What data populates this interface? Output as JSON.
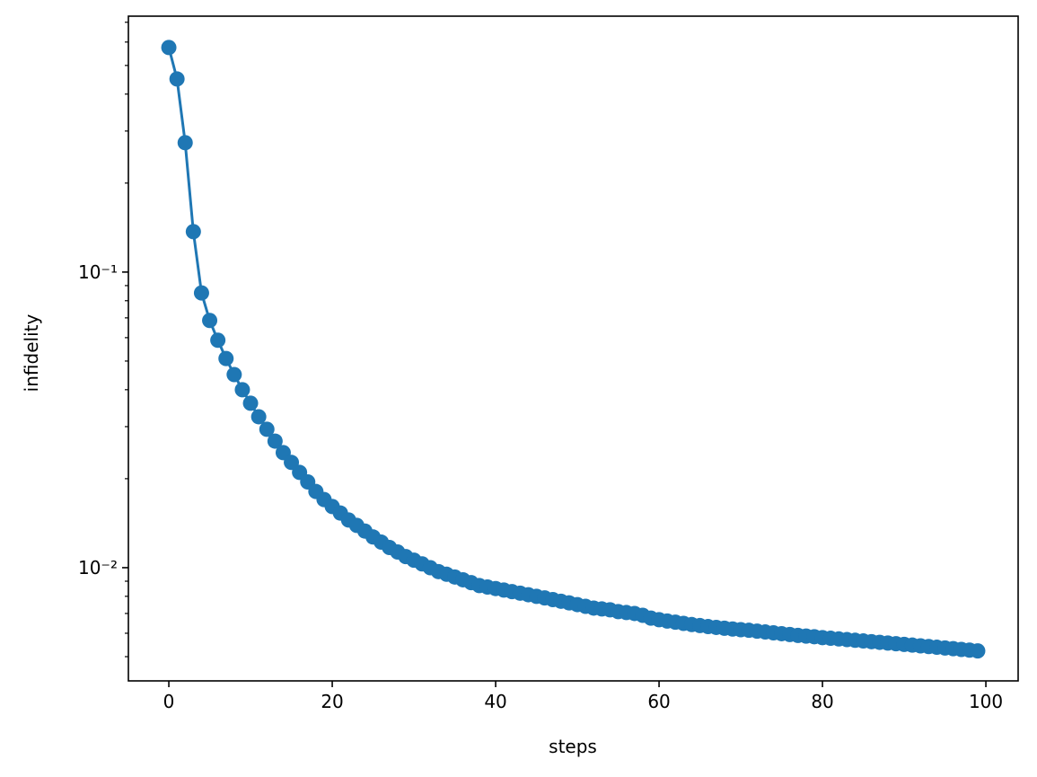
{
  "chart_data": {
    "type": "line",
    "xlabel": "steps",
    "ylabel": "infidelity",
    "yscale": "log",
    "markers": true,
    "color": "#1f77b4",
    "x": [
      0,
      1,
      2,
      3,
      4,
      5,
      6,
      7,
      8,
      9,
      10,
      11,
      12,
      13,
      14,
      15,
      16,
      17,
      18,
      19,
      20,
      21,
      22,
      23,
      24,
      25,
      26,
      27,
      28,
      29,
      30,
      31,
      32,
      33,
      34,
      35,
      36,
      37,
      38,
      39,
      40,
      41,
      42,
      43,
      44,
      45,
      46,
      47,
      48,
      49,
      50,
      51,
      52,
      53,
      54,
      55,
      56,
      57,
      58,
      59,
      60,
      61,
      62,
      63,
      64,
      65,
      66,
      67,
      68,
      69,
      70,
      71,
      72,
      73,
      74,
      75,
      76,
      77,
      78,
      79,
      80,
      81,
      82,
      83,
      84,
      85,
      86,
      87,
      88,
      89,
      90,
      91,
      92,
      93,
      94,
      95,
      96,
      97,
      98,
      99
    ],
    "values": [
      0.575,
      0.45,
      0.274,
      0.137,
      0.085,
      0.0686,
      0.0588,
      0.051,
      0.045,
      0.04,
      0.036,
      0.0324,
      0.0294,
      0.0268,
      0.0245,
      0.0227,
      0.021,
      0.0195,
      0.0181,
      0.017,
      0.0161,
      0.0153,
      0.0145,
      0.0139,
      0.0133,
      0.0127,
      0.0122,
      0.0117,
      0.0113,
      0.0109,
      0.0106,
      0.0103,
      0.01,
      0.0097,
      0.0095,
      0.0093,
      0.0091,
      0.0089,
      0.0087,
      0.0086,
      0.0085,
      0.0084,
      0.0083,
      0.0082,
      0.0081,
      0.008,
      0.0079,
      0.0078,
      0.0077,
      0.0076,
      0.0075,
      0.0074,
      0.0073,
      0.00725,
      0.0072,
      0.0071,
      0.00705,
      0.007,
      0.0069,
      0.00675,
      0.00667,
      0.0066,
      0.00654,
      0.00648,
      0.00642,
      0.00637,
      0.00632,
      0.00628,
      0.00624,
      0.0062,
      0.00617,
      0.00614,
      0.0061,
      0.00606,
      0.00602,
      0.00598,
      0.00594,
      0.0059,
      0.00587,
      0.00584,
      0.0058,
      0.00577,
      0.00574,
      0.00571,
      0.00568,
      0.00565,
      0.00562,
      0.00559,
      0.00556,
      0.00553,
      0.0055,
      0.00547,
      0.00544,
      0.00541,
      0.00538,
      0.00535,
      0.00532,
      0.00529,
      0.00526,
      0.00523
    ],
    "xlim": [
      -4.95,
      103.95
    ],
    "xticks": [
      0,
      20,
      40,
      60,
      80,
      100
    ],
    "ylim": [
      0.00414,
      0.734
    ],
    "yticks": [
      {
        "value": 0.01,
        "label": "10⁻²"
      },
      {
        "value": 0.1,
        "label": "10⁻¹"
      }
    ],
    "yminorticks": [
      0.005,
      0.006,
      0.007,
      0.008,
      0.009,
      0.02,
      0.03,
      0.04,
      0.05,
      0.06,
      0.07,
      0.08,
      0.09,
      0.2,
      0.3,
      0.4,
      0.5,
      0.6,
      0.7
    ]
  }
}
